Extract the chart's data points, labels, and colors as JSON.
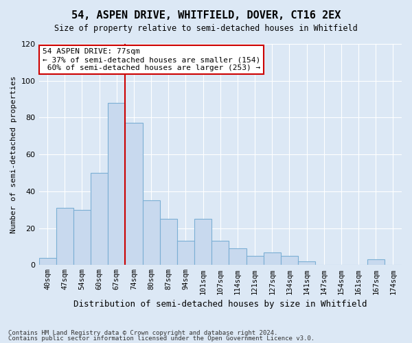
{
  "title": "54, ASPEN DRIVE, WHITFIELD, DOVER, CT16 2EX",
  "subtitle": "Size of property relative to semi-detached houses in Whitfield",
  "xlabel": "Distribution of semi-detached houses by size in Whitfield",
  "ylabel": "Number of semi-detached properties",
  "categories": [
    "40sqm",
    "47sqm",
    "54sqm",
    "60sqm",
    "67sqm",
    "74sqm",
    "80sqm",
    "87sqm",
    "94sqm",
    "101sqm",
    "107sqm",
    "114sqm",
    "121sqm",
    "127sqm",
    "134sqm",
    "141sqm",
    "147sqm",
    "154sqm",
    "161sqm",
    "167sqm",
    "174sqm"
  ],
  "values": [
    4,
    31,
    30,
    50,
    88,
    77,
    35,
    25,
    13,
    25,
    13,
    9,
    5,
    7,
    5,
    2,
    0,
    0,
    0,
    3,
    0
  ],
  "bar_color": "#c8d9ee",
  "bar_edge_color": "#7bafd4",
  "pct_smaller": 37,
  "count_smaller": 154,
  "pct_larger": 60,
  "count_larger": 253,
  "vline_bin_index": 5,
  "ylim": [
    0,
    120
  ],
  "yticks": [
    0,
    20,
    40,
    60,
    80,
    100,
    120
  ],
  "annotation_box_color": "#ffffff",
  "annotation_box_edge": "#cc0000",
  "vline_color": "#cc0000",
  "background_color": "#dce8f5",
  "plot_bg_color": "#dce8f5",
  "grid_color": "#ffffff",
  "footnote1": "Contains HM Land Registry data © Crown copyright and database right 2024.",
  "footnote2": "Contains public sector information licensed under the Open Government Licence v3.0."
}
